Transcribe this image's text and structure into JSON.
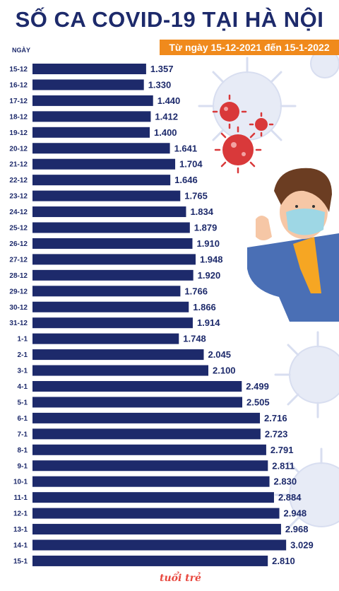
{
  "title": "SỐ CA COVID-19 TẠI HÀ NỘI",
  "subtitle": "Từ ngày 15-12-2021 đến 15-1-2022",
  "logo": "tuổi trẻ",
  "colors": {
    "bar": "#1d2a6b",
    "accent": "#f08a1c",
    "title": "#1d2a6b",
    "virus_red": "#d9393a"
  },
  "chart_data": {
    "type": "bar",
    "orientation": "horizontal",
    "ylabel": "NGÀY",
    "categories": [
      "15-12",
      "16-12",
      "17-12",
      "18-12",
      "19-12",
      "20-12",
      "21-12",
      "22-12",
      "23-12",
      "24-12",
      "25-12",
      "26-12",
      "27-12",
      "28-12",
      "29-12",
      "30-12",
      "31-12",
      "1-1",
      "2-1",
      "3-1",
      "4-1",
      "5-1",
      "6-1",
      "7-1",
      "8-1",
      "9-1",
      "10-1",
      "11-1",
      "12-1",
      "13-1",
      "14-1",
      "15-1"
    ],
    "values": [
      1357,
      1330,
      1440,
      1412,
      1400,
      1641,
      1704,
      1646,
      1765,
      1834,
      1879,
      1910,
      1948,
      1920,
      1766,
      1866,
      1914,
      1748,
      2045,
      2100,
      2499,
      2505,
      2716,
      2723,
      2791,
      2811,
      2830,
      2884,
      2948,
      2968,
      3029,
      2810
    ],
    "value_labels": [
      "1.357",
      "1.330",
      "1.440",
      "1.412",
      "1.400",
      "1.641",
      "1.704",
      "1.646",
      "1.765",
      "1.834",
      "1.879",
      "1.910",
      "1.948",
      "1.920",
      "1.766",
      "1.866",
      "1.914",
      "1.748",
      "2.045",
      "2.100",
      "2.499",
      "2.505",
      "2.716",
      "2.723",
      "2.791",
      "2.811",
      "2.830",
      "2.884",
      "2.948",
      "2.968",
      "3.029",
      "2.810"
    ]
  }
}
